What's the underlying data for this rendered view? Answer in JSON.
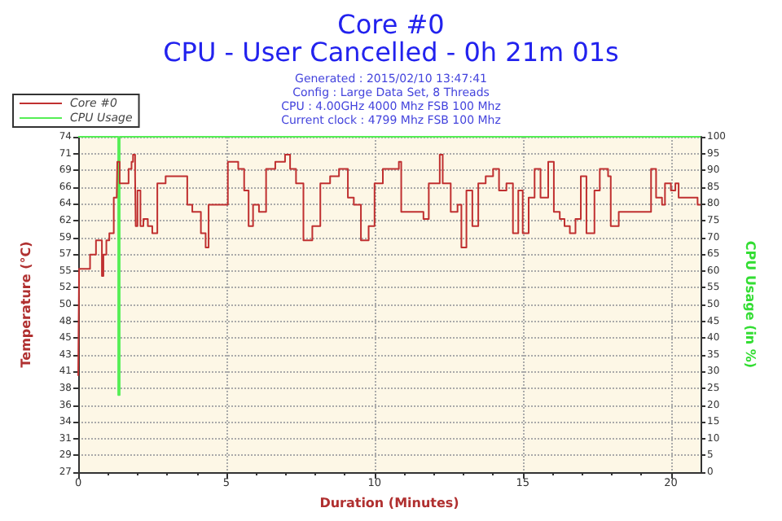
{
  "chart_data": {
    "type": "step",
    "title": "Core #0",
    "subtitle": "CPU - User Cancelled - 0h 21m 01s",
    "annotations": [
      "Generated : 2015/02/10 13:47:41",
      "Config : Large Data Set, 8 Threads",
      "CPU : 4.00GHz 4000 Mhz FSB 100 Mhz",
      "Current clock : 4799 Mhz FSB 100 Mhz"
    ],
    "xlabel": "Duration (Minutes)",
    "ylabel": "Temperature (°C)",
    "y2label": "CPU Usage (in %)",
    "xlim": [
      0,
      21
    ],
    "xticks": [
      0,
      5,
      10,
      15,
      20
    ],
    "ylim": [
      26.52,
      73.52
    ],
    "yticks": [
      {
        "value": 26.52,
        "label": "27"
      },
      {
        "value": 28.87,
        "label": "29"
      },
      {
        "value": 31.22,
        "label": "31"
      },
      {
        "value": 33.57,
        "label": "34"
      },
      {
        "value": 35.92,
        "label": "36"
      },
      {
        "value": 38.27,
        "label": "38"
      },
      {
        "value": 40.62,
        "label": "41"
      },
      {
        "value": 42.97,
        "label": "43"
      },
      {
        "value": 45.32,
        "label": "45"
      },
      {
        "value": 47.67,
        "label": "48"
      },
      {
        "value": 50.02,
        "label": "50"
      },
      {
        "value": 52.37,
        "label": "52"
      },
      {
        "value": 54.72,
        "label": "55"
      },
      {
        "value": 57.07,
        "label": "57"
      },
      {
        "value": 59.42,
        "label": "59"
      },
      {
        "value": 61.77,
        "label": "62"
      },
      {
        "value": 64.12,
        "label": "64"
      },
      {
        "value": 66.47,
        "label": "66"
      },
      {
        "value": 68.82,
        "label": "69"
      },
      {
        "value": 71.17,
        "label": "71"
      },
      {
        "value": 73.52,
        "label": "74"
      }
    ],
    "y2lim": [
      0,
      100
    ],
    "y2ticks": [
      0,
      5,
      10,
      15,
      20,
      25,
      30,
      35,
      40,
      45,
      50,
      55,
      60,
      65,
      70,
      75,
      80,
      85,
      90,
      95,
      100
    ],
    "grid": true,
    "legend": "top left",
    "marker": "none",
    "series": [
      {
        "name": "Core #0",
        "color": "#c03030",
        "x": [
          0,
          0.03,
          0.3,
          0.4,
          0.6,
          0.75,
          0.8,
          0.85,
          0.95,
          1.05,
          1.2,
          1.3,
          1.32,
          1.4,
          1.6,
          1.7,
          1.8,
          1.85,
          1.92,
          1.94,
          2.0,
          2.1,
          2.2,
          2.35,
          2.5,
          2.67,
          2.95,
          3.5,
          3.68,
          3.85,
          4.14,
          4.3,
          4.4,
          4.8,
          5.05,
          5.4,
          5.6,
          5.75,
          5.9,
          6.1,
          6.34,
          6.65,
          6.98,
          7.15,
          7.35,
          7.6,
          7.9,
          8.17,
          8.5,
          8.8,
          9.1,
          9.3,
          9.54,
          9.8,
          10.0,
          10.28,
          10.55,
          10.82,
          10.9,
          11.2,
          11.65,
          11.83,
          12.1,
          12.2,
          12.3,
          12.57,
          12.8,
          12.93,
          13.05,
          13.1,
          13.3,
          13.5,
          13.75,
          14.0,
          14.2,
          14.45,
          14.67,
          14.85,
          15.0,
          15.2,
          15.4,
          15.6,
          15.86,
          16.05,
          16.25,
          16.41,
          16.59,
          16.78,
          16.96,
          17.15,
          17.42,
          17.6,
          17.88,
          17.97,
          18.24,
          19.15,
          19.33,
          19.5,
          19.7,
          19.8,
          20.0,
          20.15,
          20.26,
          20.9,
          21.0
        ],
        "values": [
          40,
          55,
          55,
          57,
          59,
          59,
          54,
          57,
          59,
          60,
          65,
          65,
          70,
          67,
          67,
          69,
          70,
          71,
          68,
          61,
          66,
          61,
          62,
          61,
          60,
          67,
          68,
          68,
          64,
          63,
          60,
          58,
          64,
          64,
          70,
          69,
          66,
          61,
          64,
          63,
          69,
          70,
          71,
          69,
          67,
          59,
          61,
          67,
          68,
          69,
          65,
          64,
          59,
          61,
          67,
          69,
          69,
          70,
          63,
          63,
          62,
          67,
          67,
          71,
          67,
          63,
          64,
          58,
          58,
          66,
          61,
          67,
          68,
          69,
          66,
          67,
          60,
          66,
          60,
          65,
          69,
          65,
          70,
          63,
          62,
          61,
          60,
          62,
          68,
          60,
          66,
          69,
          68,
          61,
          63,
          63,
          69,
          65,
          64,
          67,
          66,
          67,
          65,
          64,
          64
        ]
      },
      {
        "name": "CPU Usage",
        "color": "#55ee55",
        "axis": "y2",
        "x": [
          0,
          1.3,
          1.35,
          1.4,
          21
        ],
        "values": [
          100,
          100,
          23,
          100,
          100
        ]
      }
    ]
  }
}
